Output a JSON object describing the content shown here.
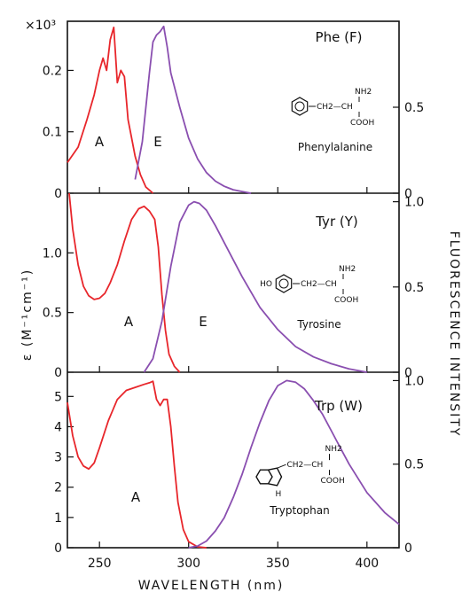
{
  "colors": {
    "absorption": "#e8262b",
    "emission": "#8a4fb0",
    "axes": "#111111"
  },
  "axes": {
    "x_label": "WAVELENGTH (nm)",
    "y_left_label": "ε (M⁻¹cm⁻¹)",
    "y_right_label": "FLUORESCENCE INTENSITY",
    "x_multiplier_label": "×10³"
  },
  "chart_data": [
    {
      "type": "line",
      "panel_label": "Phe (F)",
      "molecule_name": "Phenylalanine",
      "structure": {
        "amine": "NH2",
        "alpha": "CH2—CH",
        "acid": "COOH",
        "ring_substituent": ""
      },
      "xlim": [
        232,
        418
      ],
      "ylim_left": [
        0,
        0.28
      ],
      "ylim_right": [
        0,
        1.0
      ],
      "y_left_ticks": [
        "0",
        "0.1",
        "0.2"
      ],
      "y_right_ticks": [
        "0",
        "0.5"
      ],
      "x_ticks": [],
      "series": [
        {
          "name": "A",
          "axis": "left",
          "x": [
            232,
            238,
            243,
            247,
            250,
            252,
            254,
            256,
            258,
            260,
            262,
            264,
            266,
            268,
            270,
            273,
            276,
            280
          ],
          "y": [
            0.05,
            0.075,
            0.12,
            0.16,
            0.2,
            0.22,
            0.2,
            0.25,
            0.27,
            0.18,
            0.2,
            0.19,
            0.12,
            0.09,
            0.06,
            0.03,
            0.01,
            0.0
          ]
        },
        {
          "name": "E",
          "axis": "right",
          "x": [
            270,
            274,
            276,
            278,
            280,
            282,
            284,
            286,
            288,
            290,
            295,
            300,
            305,
            310,
            315,
            320,
            325,
            330,
            335
          ],
          "y": [
            0.08,
            0.3,
            0.5,
            0.7,
            0.88,
            0.92,
            0.94,
            0.97,
            0.85,
            0.7,
            0.5,
            0.32,
            0.2,
            0.12,
            0.07,
            0.04,
            0.02,
            0.01,
            0.0
          ]
        }
      ]
    },
    {
      "type": "line",
      "panel_label": "Tyr (Y)",
      "molecule_name": "Tyrosine",
      "structure": {
        "amine": "NH2",
        "alpha": "CH2—CH",
        "acid": "COOH",
        "ring_substituent": "HO"
      },
      "xlim": [
        232,
        418
      ],
      "ylim_left": [
        0,
        1.5
      ],
      "ylim_right": [
        0,
        1.05
      ],
      "y_left_ticks": [
        "0",
        "0.5",
        "1.0"
      ],
      "y_right_ticks": [
        "0",
        "0.5",
        "1.0"
      ],
      "x_ticks": [],
      "series": [
        {
          "name": "A",
          "axis": "left",
          "x": [
            233,
            235,
            238,
            241,
            244,
            247,
            250,
            253,
            256,
            260,
            264,
            268,
            272,
            275,
            278,
            281,
            283,
            285,
            287,
            289,
            292,
            295
          ],
          "y": [
            1.5,
            1.2,
            0.9,
            0.72,
            0.64,
            0.61,
            0.62,
            0.66,
            0.75,
            0.9,
            1.1,
            1.28,
            1.37,
            1.39,
            1.35,
            1.28,
            1.05,
            0.65,
            0.35,
            0.15,
            0.05,
            0.0
          ]
        },
        {
          "name": "E",
          "axis": "right",
          "x": [
            275,
            280,
            285,
            290,
            295,
            300,
            303,
            306,
            310,
            315,
            320,
            330,
            340,
            350,
            360,
            370,
            380,
            390,
            400
          ],
          "y": [
            0.0,
            0.08,
            0.3,
            0.62,
            0.88,
            0.98,
            1.0,
            0.99,
            0.95,
            0.86,
            0.76,
            0.56,
            0.38,
            0.25,
            0.15,
            0.09,
            0.05,
            0.02,
            0.0
          ]
        }
      ]
    },
    {
      "type": "line",
      "panel_label": "Trp (W)",
      "molecule_name": "Tryptophan",
      "structure": {
        "amine": "NH2",
        "alpha": "CH2—CH",
        "acid": "COOH",
        "ring_substituent": "H"
      },
      "xlim": [
        232,
        418
      ],
      "ylim_left": [
        0,
        5.8
      ],
      "ylim_right": [
        0,
        1.05
      ],
      "y_left_ticks": [
        "0",
        "1",
        "2",
        "3",
        "4",
        "5"
      ],
      "y_right_ticks": [
        "0",
        "0.5",
        "1.0"
      ],
      "x_ticks": [
        "250",
        "300",
        "350",
        "400"
      ],
      "series": [
        {
          "name": "A",
          "axis": "left",
          "x": [
            232,
            235,
            238,
            241,
            244,
            247,
            250,
            255,
            260,
            265,
            270,
            275,
            278,
            280,
            282,
            284,
            286,
            288,
            290,
            292,
            294,
            297,
            300,
            305,
            310
          ],
          "y": [
            4.8,
            3.7,
            3.0,
            2.7,
            2.6,
            2.8,
            3.3,
            4.2,
            4.9,
            5.2,
            5.3,
            5.4,
            5.45,
            5.5,
            4.9,
            4.7,
            4.9,
            4.9,
            4.0,
            2.7,
            1.5,
            0.6,
            0.2,
            0.03,
            0.0
          ]
        },
        {
          "name": "",
          "axis": "right",
          "x": [
            300,
            305,
            310,
            315,
            320,
            325,
            330,
            335,
            340,
            345,
            350,
            355,
            360,
            365,
            370,
            375,
            380,
            385,
            390,
            400,
            410,
            418
          ],
          "y": [
            0.0,
            0.01,
            0.04,
            0.1,
            0.18,
            0.3,
            0.44,
            0.6,
            0.75,
            0.88,
            0.97,
            1.0,
            0.99,
            0.95,
            0.88,
            0.8,
            0.7,
            0.6,
            0.5,
            0.33,
            0.21,
            0.14
          ]
        }
      ]
    }
  ]
}
